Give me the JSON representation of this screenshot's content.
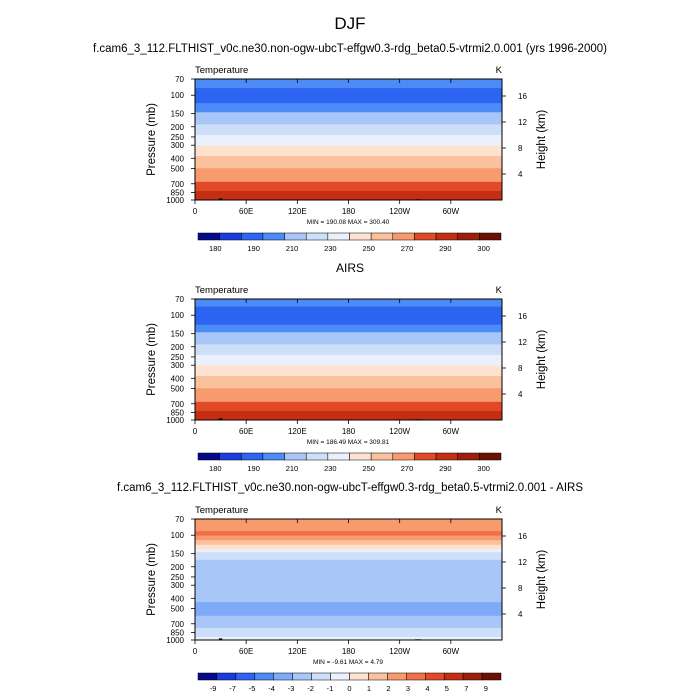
{
  "page_title": "DJF",
  "chart_data": [
    {
      "type": "heatmap",
      "title": "f.cam6_3_112.FLTHIST_v0c.ne30.non-ogw-ubcT-effgw0.3-rdg_beta0.5-vtrmi2.0.001 (yrs 1996-2000)",
      "left_label": "Temperature",
      "right_label": "K",
      "ylabel": "Pressure (mb)",
      "ylabel_right": "Height (km)",
      "y_ticks": [
        "70",
        "100",
        "150",
        "200",
        "250",
        "300",
        "400",
        "500",
        "700",
        "850",
        "1000"
      ],
      "y_tick_values": [
        70,
        100,
        150,
        200,
        250,
        300,
        400,
        500,
        700,
        850,
        1000
      ],
      "ylim": [
        70,
        1000
      ],
      "height_ticks": [
        "16",
        "12",
        "8",
        "4"
      ],
      "height_tick_values": [
        16,
        12,
        8,
        4
      ],
      "x_ticks": [
        "0",
        "60E",
        "120E",
        "180",
        "120W",
        "60W"
      ],
      "x_tick_values": [
        0,
        60,
        120,
        180,
        240,
        300
      ],
      "xlim": [
        0,
        360
      ],
      "stats": "MIN = 190.08   MAX = 300.40",
      "colorbar_labels": [
        "180",
        "190",
        "210",
        "230",
        "250",
        "270",
        "290",
        "300"
      ],
      "levels": [
        180,
        190,
        200,
        210,
        220,
        230,
        240,
        250,
        260,
        270,
        280,
        290,
        300
      ],
      "profile": [
        [
          70,
          203
        ],
        [
          100,
          198
        ],
        [
          120,
          200
        ],
        [
          150,
          212
        ],
        [
          200,
          222
        ],
        [
          250,
          232
        ],
        [
          300,
          240
        ],
        [
          400,
          252
        ],
        [
          500,
          260
        ],
        [
          700,
          272
        ],
        [
          850,
          282
        ],
        [
          1000,
          288
        ]
      ]
    },
    {
      "type": "heatmap",
      "title": "AIRS",
      "left_label": "Temperature",
      "right_label": "K",
      "ylabel": "Pressure (mb)",
      "ylabel_right": "Height (km)",
      "y_ticks": [
        "70",
        "100",
        "150",
        "200",
        "250",
        "300",
        "400",
        "500",
        "700",
        "850",
        "1000"
      ],
      "y_tick_values": [
        70,
        100,
        150,
        200,
        250,
        300,
        400,
        500,
        700,
        850,
        1000
      ],
      "ylim": [
        70,
        1000
      ],
      "height_ticks": [
        "16",
        "12",
        "8",
        "4"
      ],
      "height_tick_values": [
        16,
        12,
        8,
        4
      ],
      "x_ticks": [
        "0",
        "60E",
        "120E",
        "180",
        "120W",
        "60W"
      ],
      "x_tick_values": [
        0,
        60,
        120,
        180,
        240,
        300
      ],
      "xlim": [
        0,
        360
      ],
      "stats": "MIN = 186.49   MAX = 309.81",
      "colorbar_labels": [
        "180",
        "190",
        "210",
        "230",
        "250",
        "270",
        "290",
        "300"
      ],
      "levels": [
        180,
        190,
        200,
        210,
        220,
        230,
        240,
        250,
        260,
        270,
        280,
        290,
        300
      ],
      "profile": [
        [
          70,
          203
        ],
        [
          100,
          196
        ],
        [
          120,
          199
        ],
        [
          150,
          212
        ],
        [
          200,
          222
        ],
        [
          250,
          232
        ],
        [
          300,
          240
        ],
        [
          400,
          252
        ],
        [
          500,
          260
        ],
        [
          700,
          272
        ],
        [
          850,
          282
        ],
        [
          1000,
          289
        ]
      ]
    },
    {
      "type": "heatmap",
      "title": "f.cam6_3_112.FLTHIST_v0c.ne30.non-ogw-ubcT-effgw0.3-rdg_beta0.5-vtrmi2.0.001 - AIRS",
      "left_label": "Temperature",
      "right_label": "K",
      "ylabel": "Pressure (mb)",
      "ylabel_right": "Height (km)",
      "y_ticks": [
        "70",
        "100",
        "150",
        "200",
        "250",
        "300",
        "400",
        "500",
        "700",
        "850",
        "1000"
      ],
      "y_tick_values": [
        70,
        100,
        150,
        200,
        250,
        300,
        400,
        500,
        700,
        850,
        1000
      ],
      "ylim": [
        70,
        1000
      ],
      "height_ticks": [
        "16",
        "12",
        "8",
        "4"
      ],
      "height_tick_values": [
        16,
        12,
        8,
        4
      ],
      "x_ticks": [
        "0",
        "60E",
        "120E",
        "180",
        "120W",
        "60W"
      ],
      "x_tick_values": [
        0,
        60,
        120,
        180,
        240,
        300
      ],
      "xlim": [
        0,
        360
      ],
      "stats": "MIN =  -9.61   MAX =   4.79",
      "colorbar_labels": [
        "-9",
        "-7",
        "-5",
        "-4",
        "-3",
        "-2",
        "-1",
        "0",
        "1",
        "2",
        "3",
        "4",
        "5",
        "7",
        "9"
      ],
      "levels": [
        -9,
        -7,
        -5,
        -4,
        -3,
        -2,
        -1,
        0,
        1,
        2,
        3,
        4,
        5,
        7,
        9
      ],
      "profile": [
        [
          70,
          2.5
        ],
        [
          100,
          3.2
        ],
        [
          130,
          0.5
        ],
        [
          150,
          -1.5
        ],
        [
          200,
          -2.5
        ],
        [
          300,
          -2.3
        ],
        [
          400,
          -2.6
        ],
        [
          500,
          -3.5
        ],
        [
          700,
          -2.5
        ],
        [
          850,
          -1.5
        ],
        [
          1000,
          -0.5
        ]
      ]
    }
  ],
  "palette": [
    "#08088a",
    "#1a3ddb",
    "#2d64f2",
    "#4d8bf5",
    "#7eaaf7",
    "#a9c6f8",
    "#cddff9",
    "#eaf1fb",
    "#fde3cf",
    "#fbc09c",
    "#f79a6e",
    "#f07147",
    "#e04a26",
    "#c42e12",
    "#9c1f0a",
    "#6e0f05"
  ]
}
